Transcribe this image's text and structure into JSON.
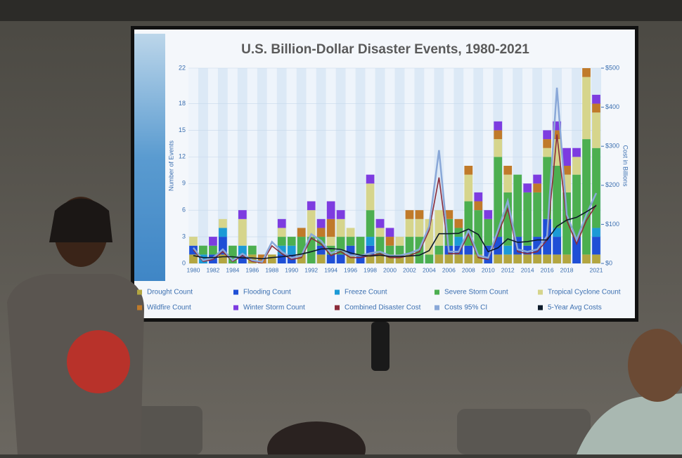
{
  "chart_data": {
    "type": "stacked_bar_line",
    "title": "U.S. Billion-Dollar Disaster Events, 1980-2021",
    "ylabel": "Number of Events",
    "y2label": "Cost in Billions",
    "categories": [
      "1980",
      null,
      "1982",
      null,
      "1984",
      null,
      "1986",
      null,
      "1988",
      null,
      "1990",
      null,
      "1992",
      null,
      "1994",
      null,
      "1996",
      null,
      "1998",
      null,
      "2000",
      null,
      "2002",
      null,
      "2004",
      null,
      "2006",
      null,
      "2008",
      null,
      "2010",
      null,
      "2012",
      null,
      "2014",
      null,
      "2016",
      null,
      "2018",
      null,
      null,
      "2021"
    ],
    "ylim": [
      0,
      22
    ],
    "yticks": [
      0,
      3,
      6,
      9,
      12,
      15,
      18,
      22
    ],
    "y2lim": [
      0,
      500
    ],
    "y2ticks": [
      {
        "value": 0,
        "label": "$0"
      },
      {
        "value": 100,
        "label": "$100"
      },
      {
        "value": 200,
        "label": "$200"
      },
      {
        "value": 300,
        "label": "$300"
      },
      {
        "value": 400,
        "label": "$400"
      },
      {
        "value": 500,
        "label": "$500"
      }
    ],
    "series": [
      {
        "name": "Drought Count",
        "color": "#b3a640",
        "values": [
          1,
          0,
          0,
          1,
          0,
          0,
          1,
          0,
          1,
          0,
          0,
          1,
          0,
          1,
          0,
          0,
          1,
          0,
          1,
          1,
          1,
          1,
          1,
          0,
          0,
          1,
          1,
          1,
          1,
          1,
          0,
          1,
          1,
          1,
          1,
          1,
          1,
          1,
          1,
          0,
          1,
          1
        ]
      },
      {
        "name": "Flooding Count",
        "color": "#1f4fd6",
        "values": [
          1,
          0,
          1,
          2,
          0,
          1,
          0,
          0,
          0,
          1,
          1,
          0,
          0,
          1,
          1,
          1,
          1,
          1,
          1,
          0,
          0,
          0,
          0,
          0,
          0,
          0,
          1,
          1,
          1,
          0,
          2,
          2,
          0,
          2,
          1,
          2,
          4,
          2,
          0,
          3,
          0,
          2
        ]
      },
      {
        "name": "Freeze Count",
        "color": "#1c9ad6",
        "values": [
          0,
          1,
          0,
          1,
          0,
          1,
          0,
          0,
          0,
          1,
          1,
          0,
          0,
          0,
          0,
          0,
          0,
          0,
          1,
          0,
          0,
          0,
          0,
          0,
          0,
          0,
          0,
          1,
          0,
          0,
          0,
          0,
          1,
          0,
          0,
          0,
          0,
          1,
          0,
          0,
          0,
          1
        ]
      },
      {
        "name": "Severe Storm Count",
        "color": "#4caf50",
        "values": [
          0,
          1,
          1,
          0,
          2,
          0,
          1,
          0,
          0,
          1,
          1,
          2,
          3,
          1,
          1,
          2,
          1,
          2,
          3,
          2,
          1,
          1,
          2,
          3,
          1,
          1,
          3,
          1,
          5,
          5,
          3,
          9,
          6,
          7,
          6,
          5,
          7,
          7,
          7,
          7,
          13,
          9
        ]
      },
      {
        "name": "Tropical Cyclone Count",
        "color": "#d6d58c",
        "values": [
          1,
          0,
          0,
          1,
          0,
          3,
          0,
          0,
          0,
          1,
          0,
          0,
          3,
          0,
          1,
          2,
          1,
          0,
          3,
          1,
          0,
          1,
          2,
          2,
          4,
          4,
          0,
          0,
          3,
          0,
          0,
          2,
          2,
          0,
          0,
          0,
          1,
          3,
          2,
          2,
          7,
          4
        ]
      },
      {
        "name": "Wildfire Count",
        "color": "#c07a2a",
        "values": [
          0,
          0,
          0,
          0,
          0,
          0,
          0,
          1,
          0,
          0,
          0,
          1,
          0,
          1,
          2,
          0,
          0,
          0,
          0,
          0,
          1,
          0,
          1,
          1,
          0,
          0,
          1,
          1,
          1,
          1,
          0,
          1,
          1,
          0,
          0,
          1,
          1,
          1,
          1,
          0,
          1,
          1
        ]
      },
      {
        "name": "Winter Storm Count",
        "color": "#7d3ce0",
        "values": [
          0,
          0,
          1,
          0,
          0,
          1,
          0,
          0,
          0,
          1,
          0,
          0,
          1,
          1,
          2,
          1,
          0,
          0,
          1,
          1,
          1,
          0,
          0,
          0,
          0,
          0,
          0,
          0,
          0,
          1,
          1,
          1,
          0,
          0,
          1,
          1,
          1,
          1,
          2,
          1,
          0,
          1
        ]
      },
      {
        "name": "Combined Disaster Cost",
        "color": "#8b2c3a",
        "axis": "y2",
        "values": [
          35,
          5,
          10,
          30,
          5,
          20,
          5,
          2,
          45,
          25,
          10,
          15,
          65,
          50,
          20,
          30,
          15,
          15,
          20,
          25,
          15,
          15,
          20,
          30,
          85,
          220,
          25,
          25,
          75,
          15,
          10,
          75,
          140,
          30,
          25,
          30,
          60,
          330,
          110,
          50,
          110,
          150
        ]
      },
      {
        "name": "Costs 95% CI",
        "color": "#8aa8d8",
        "axis": "y2",
        "values": [
          40,
          8,
          14,
          36,
          8,
          25,
          8,
          4,
          55,
          30,
          14,
          20,
          75,
          58,
          26,
          36,
          20,
          20,
          26,
          30,
          20,
          20,
          26,
          36,
          95,
          290,
          30,
          30,
          85,
          20,
          14,
          85,
          160,
          36,
          30,
          36,
          70,
          450,
          125,
          60,
          125,
          180
        ]
      },
      {
        "name": "5-Year Avg Costs",
        "color": "#0d1b2a",
        "axis": "y2",
        "values": [
          20,
          15,
          15,
          17,
          17,
          14,
          14,
          12,
          15,
          17,
          20,
          24,
          30,
          37,
          38,
          36,
          27,
          21,
          19,
          21,
          18,
          18,
          19,
          21,
          33,
          76,
          76,
          77,
          88,
          74,
          30,
          40,
          63,
          54,
          56,
          60,
          60,
          95,
          111,
          118,
          132,
          148
        ]
      }
    ]
  }
}
